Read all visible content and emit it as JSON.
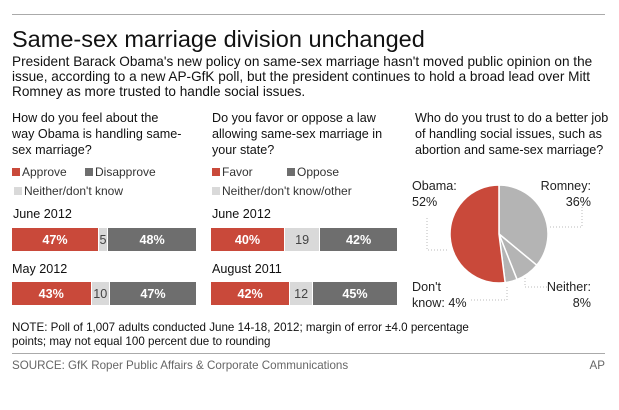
{
  "title": "Same-sex marriage division unchanged",
  "intro": "President Barack Obama's new policy on same-sex marriage hasn't moved public opinion on the issue, according to a new AP-GfK poll, but the president continues to hold a broad lead over Mitt Romney as more trusted to handle social issues.",
  "colors": {
    "red": "#c9493a",
    "dark": "#6e6e6e",
    "light": "#d9d9d9",
    "pie_gray": "#b4b4b4"
  },
  "chart_data": [
    {
      "type": "bar",
      "stacked": true,
      "question": "How do you feel about the way Obama is handling same-sex marriage?",
      "legend": [
        "Approve",
        "Disapprove",
        "Neither/don't know"
      ],
      "categories": [
        "June 2012",
        "May 2012"
      ],
      "series": [
        {
          "name": "Approve",
          "values": [
            47,
            43
          ],
          "labels": [
            "47%",
            "43%"
          ]
        },
        {
          "name": "Neither/don't know",
          "values": [
            5,
            10
          ],
          "labels": [
            "5",
            "10"
          ]
        },
        {
          "name": "Disapprove",
          "values": [
            48,
            47
          ],
          "labels": [
            "48%",
            "47%"
          ]
        }
      ]
    },
    {
      "type": "bar",
      "stacked": true,
      "question": "Do you favor or oppose a law allowing same-sex marriage in your state?",
      "legend": [
        "Favor",
        "Oppose",
        "Neither/don't know/other"
      ],
      "categories": [
        "June 2012",
        "August 2011"
      ],
      "series": [
        {
          "name": "Favor",
          "values": [
            40,
            42
          ],
          "labels": [
            "40%",
            "42%"
          ]
        },
        {
          "name": "Neither/don't know/other",
          "values": [
            19,
            12
          ],
          "labels": [
            "19",
            "12"
          ]
        },
        {
          "name": "Oppose",
          "values": [
            42,
            45
          ],
          "labels": [
            "42%",
            "45%"
          ]
        }
      ]
    },
    {
      "type": "pie",
      "question": "Who do you trust to do a better job of handling social issues, such as abortion and same-sex marriage?",
      "slices": [
        {
          "name": "Romney:",
          "value": 36,
          "label": "36%"
        },
        {
          "name": "Neither:",
          "value": 8,
          "label": "8%"
        },
        {
          "name": "Don't know:",
          "value": 4,
          "label": "4%"
        },
        {
          "name": "Obama:",
          "value": 52,
          "label": "52%"
        }
      ]
    }
  ],
  "note": "NOTE: Poll of 1,007 adults conducted June 14-18, 2012; margin of error ±4.0 percentage points; may not equal 100 percent due to rounding",
  "source": "SOURCE: GfK Roper Public Affairs & Corporate Communications",
  "credit": "AP"
}
